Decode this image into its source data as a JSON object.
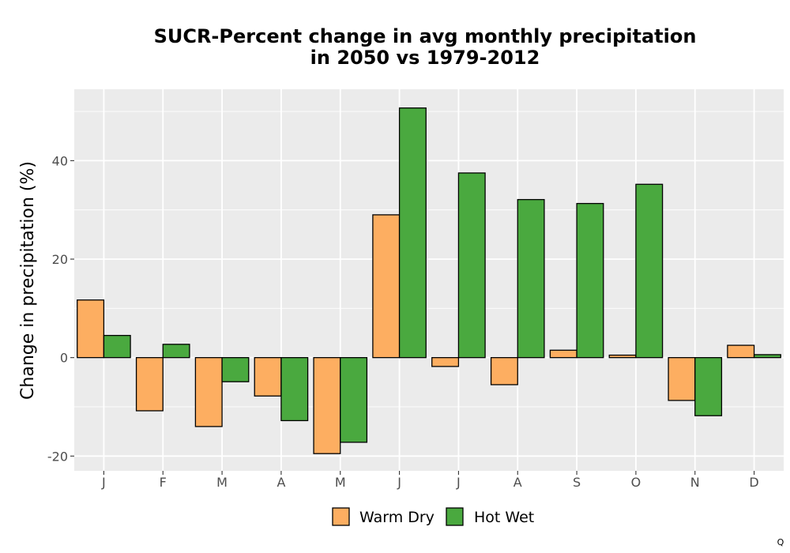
{
  "chart_data": {
    "type": "bar",
    "title_line1": "SUCR-Percent change in avg monthly precipitation",
    "title_line2": "in 2050 vs 1979-2012",
    "xlabel": "",
    "ylabel": "Change in precipitation (%)",
    "categories": [
      "J",
      "F",
      "M",
      "A",
      "M",
      "J",
      "J",
      "A",
      "S",
      "O",
      "N",
      "D"
    ],
    "series": [
      {
        "name": "Warm Dry",
        "color": "#fdae61",
        "values": [
          11.7,
          -10.8,
          -14.0,
          -7.8,
          -19.5,
          29.0,
          -1.8,
          -5.5,
          1.5,
          0.5,
          -8.7,
          2.5
        ]
      },
      {
        "name": "Hot Wet",
        "color": "#4aa93f",
        "values": [
          4.5,
          2.7,
          -4.9,
          -12.8,
          -17.2,
          50.7,
          37.5,
          32.1,
          31.3,
          35.2,
          -11.8,
          0.6
        ]
      }
    ],
    "y_ticks": [
      -20,
      0,
      20,
      40
    ],
    "y_tick_labels": [
      "-20",
      "0",
      "20",
      "40"
    ],
    "ylim": [
      -23,
      54.5
    ],
    "grid": true,
    "legend_position": "bottom"
  },
  "watermark": "Q"
}
